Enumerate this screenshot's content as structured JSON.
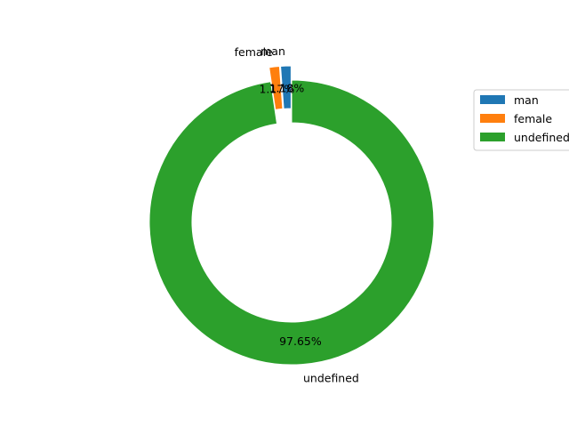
{
  "chart_data": {
    "type": "pie",
    "style": "donut",
    "categories": [
      "man",
      "female",
      "undefined"
    ],
    "values": [
      1.18,
      1.17,
      97.65
    ],
    "value_labels": [
      "1.18%",
      "1.17%",
      "97.65%"
    ],
    "colors": [
      "#1f77b4",
      "#ff7f0e",
      "#2ca02c"
    ],
    "exploded": [
      "man",
      "female"
    ],
    "start_angle_deg": 90,
    "direction": "counterclockwise",
    "legend": {
      "position": "right",
      "items": [
        "man",
        "female",
        "undefined"
      ]
    }
  }
}
